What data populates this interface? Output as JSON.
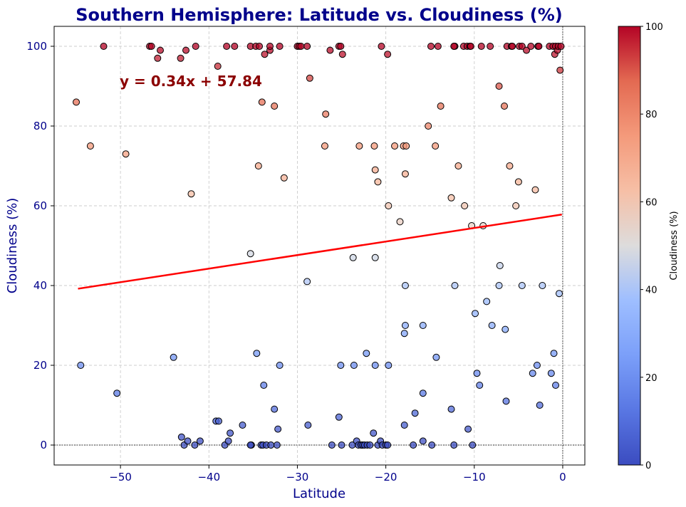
{
  "chart_data": {
    "type": "scatter",
    "title": "Southern Hemisphere: Latitude vs. Cloudiness (%)",
    "xlabel": "Latitude",
    "ylabel": "Cloudiness (%)",
    "xlim": [
      -57.5,
      2.5
    ],
    "ylim": [
      -5,
      105
    ],
    "xticks": [
      -50,
      -40,
      -30,
      -20,
      -10,
      0
    ],
    "xtick_labels": [
      "−50",
      "−40",
      "−30",
      "−20",
      "−10",
      "0"
    ],
    "yticks": [
      0,
      20,
      40,
      60,
      80,
      100
    ],
    "ytick_labels": [
      "0",
      "20",
      "40",
      "60",
      "80",
      "100"
    ],
    "grid": true,
    "grid_style": "dashed",
    "reference_lines": {
      "y": 0,
      "x": 0
    },
    "colormap": "coolwarm",
    "colorbar": {
      "label": "Cloudiness (%)",
      "range": [
        0,
        100
      ],
      "ticks": [
        0,
        20,
        40,
        60,
        80,
        100
      ],
      "tick_labels": [
        "0",
        "20",
        "40",
        "60",
        "80",
        "100"
      ]
    },
    "regression": {
      "equation": "y = 0.34x + 57.84",
      "slope": 0.34,
      "intercept": 57.84,
      "x_range": [
        -54.8,
        -0.1
      ],
      "color": "#ff0000"
    },
    "series": [
      {
        "points": [
          [
            -55.0,
            86
          ],
          [
            -53.4,
            75
          ],
          [
            -51.9,
            100
          ],
          [
            -49.4,
            73
          ],
          [
            -46.7,
            100
          ],
          [
            -46.5,
            100
          ],
          [
            -45.8,
            97
          ],
          [
            -45.5,
            99
          ],
          [
            -43.2,
            97
          ],
          [
            -42.6,
            99
          ],
          [
            -41.5,
            100
          ],
          [
            -42.0,
            63
          ],
          [
            -39.0,
            95
          ],
          [
            -38.0,
            100
          ],
          [
            -37.1,
            100
          ],
          [
            -35.3,
            100
          ],
          [
            -34.7,
            100
          ],
          [
            -34.3,
            100
          ],
          [
            -34.0,
            86
          ],
          [
            -33.7,
            98
          ],
          [
            -33.1,
            99
          ],
          [
            -33.1,
            100
          ],
          [
            -32.6,
            85
          ],
          [
            -32.0,
            100
          ],
          [
            -31.5,
            67
          ],
          [
            -34.4,
            70
          ],
          [
            -30.0,
            100
          ],
          [
            -29.8,
            100
          ],
          [
            -29.6,
            100
          ],
          [
            -28.9,
            100
          ],
          [
            -28.6,
            92
          ],
          [
            -26.8,
            83
          ],
          [
            -26.9,
            75
          ],
          [
            -26.3,
            99
          ],
          [
            -25.3,
            100
          ],
          [
            -25.1,
            100
          ],
          [
            -24.9,
            98
          ],
          [
            -23.0,
            75
          ],
          [
            -21.3,
            75
          ],
          [
            -21.2,
            69
          ],
          [
            -20.9,
            66
          ],
          [
            -20.5,
            100
          ],
          [
            -19.8,
            98
          ],
          [
            -19.7,
            60
          ],
          [
            -19.0,
            75
          ],
          [
            -18.0,
            75
          ],
          [
            -17.7,
            75
          ],
          [
            -17.8,
            68
          ],
          [
            -18.4,
            56
          ],
          [
            -15.2,
            80
          ],
          [
            -14.9,
            100
          ],
          [
            -14.4,
            75
          ],
          [
            -14.1,
            100
          ],
          [
            -13.8,
            85
          ],
          [
            -12.6,
            62
          ],
          [
            -12.2,
            100
          ],
          [
            -12.3,
            100
          ],
          [
            -11.8,
            70
          ],
          [
            -11.2,
            100
          ],
          [
            -11.1,
            60
          ],
          [
            -10.8,
            100
          ],
          [
            -10.5,
            100
          ],
          [
            -10.4,
            100
          ],
          [
            -10.3,
            55
          ],
          [
            -9.2,
            100
          ],
          [
            -9.0,
            55
          ],
          [
            -8.2,
            100
          ],
          [
            -7.2,
            90
          ],
          [
            -6.6,
            85
          ],
          [
            -6.3,
            100
          ],
          [
            -6.0,
            70
          ],
          [
            -5.8,
            100
          ],
          [
            -5.7,
            100
          ],
          [
            -5.3,
            60
          ],
          [
            -5.0,
            66
          ],
          [
            -4.9,
            100
          ],
          [
            -4.6,
            100
          ],
          [
            -4.1,
            99
          ],
          [
            -3.6,
            100
          ],
          [
            -3.1,
            64
          ],
          [
            -2.8,
            100
          ],
          [
            -2.7,
            100
          ],
          [
            -1.5,
            100
          ],
          [
            -1.1,
            100
          ],
          [
            -0.9,
            98
          ],
          [
            -0.8,
            100
          ],
          [
            -0.6,
            99
          ],
          [
            -0.5,
            100
          ],
          [
            -0.3,
            94
          ],
          [
            -0.2,
            100
          ],
          [
            -54.5,
            20
          ],
          [
            -50.4,
            13
          ],
          [
            -44.0,
            22
          ],
          [
            -43.1,
            2
          ],
          [
            -42.8,
            0
          ],
          [
            -42.4,
            1
          ],
          [
            -41.6,
            0
          ],
          [
            -41.0,
            1
          ],
          [
            -39.2,
            6
          ],
          [
            -38.9,
            6
          ],
          [
            -38.2,
            0
          ],
          [
            -37.8,
            1
          ],
          [
            -37.6,
            3
          ],
          [
            -36.2,
            5
          ],
          [
            -35.3,
            48
          ],
          [
            -35.2,
            0
          ],
          [
            -35.3,
            0
          ],
          [
            -34.6,
            23
          ],
          [
            -34.1,
            0
          ],
          [
            -33.9,
            0
          ],
          [
            -33.8,
            15
          ],
          [
            -33.5,
            0
          ],
          [
            -33.0,
            0
          ],
          [
            -32.6,
            9
          ],
          [
            -32.3,
            0
          ],
          [
            -32.2,
            4
          ],
          [
            -32.0,
            20
          ],
          [
            -28.9,
            41
          ],
          [
            -28.8,
            5
          ],
          [
            -26.1,
            0
          ],
          [
            -25.3,
            7
          ],
          [
            -25.1,
            20
          ],
          [
            -25.0,
            0
          ],
          [
            -23.8,
            0
          ],
          [
            -23.7,
            47
          ],
          [
            -23.6,
            20
          ],
          [
            -23.3,
            1
          ],
          [
            -23.1,
            0
          ],
          [
            -22.8,
            0
          ],
          [
            -22.6,
            0
          ],
          [
            -22.4,
            0
          ],
          [
            -22.2,
            23
          ],
          [
            -22.1,
            0
          ],
          [
            -21.8,
            0
          ],
          [
            -21.4,
            3
          ],
          [
            -21.2,
            47
          ],
          [
            -21.2,
            20
          ],
          [
            -20.9,
            0
          ],
          [
            -20.6,
            1
          ],
          [
            -20.4,
            0
          ],
          [
            -20.0,
            0
          ],
          [
            -19.8,
            0
          ],
          [
            -19.7,
            20
          ],
          [
            -17.9,
            28
          ],
          [
            -17.8,
            40
          ],
          [
            -17.8,
            30
          ],
          [
            -17.9,
            5
          ],
          [
            -16.9,
            0
          ],
          [
            -16.7,
            8
          ],
          [
            -15.8,
            13
          ],
          [
            -15.8,
            1
          ],
          [
            -15.8,
            30
          ],
          [
            -14.8,
            0
          ],
          [
            -14.3,
            22
          ],
          [
            -12.6,
            9
          ],
          [
            -12.3,
            0
          ],
          [
            -12.2,
            40
          ],
          [
            -10.7,
            4
          ],
          [
            -10.2,
            0
          ],
          [
            -9.9,
            33
          ],
          [
            -9.7,
            18
          ],
          [
            -9.4,
            15
          ],
          [
            -8.6,
            36
          ],
          [
            -8.0,
            30
          ],
          [
            -7.2,
            40
          ],
          [
            -7.1,
            45
          ],
          [
            -6.5,
            29
          ],
          [
            -6.4,
            11
          ],
          [
            -4.6,
            40
          ],
          [
            -3.4,
            18
          ],
          [
            -2.9,
            20
          ],
          [
            -2.6,
            10
          ],
          [
            -2.3,
            40
          ],
          [
            -1.3,
            18
          ],
          [
            -1.0,
            23
          ],
          [
            -0.8,
            15
          ],
          [
            -0.4,
            38
          ]
        ]
      }
    ]
  }
}
